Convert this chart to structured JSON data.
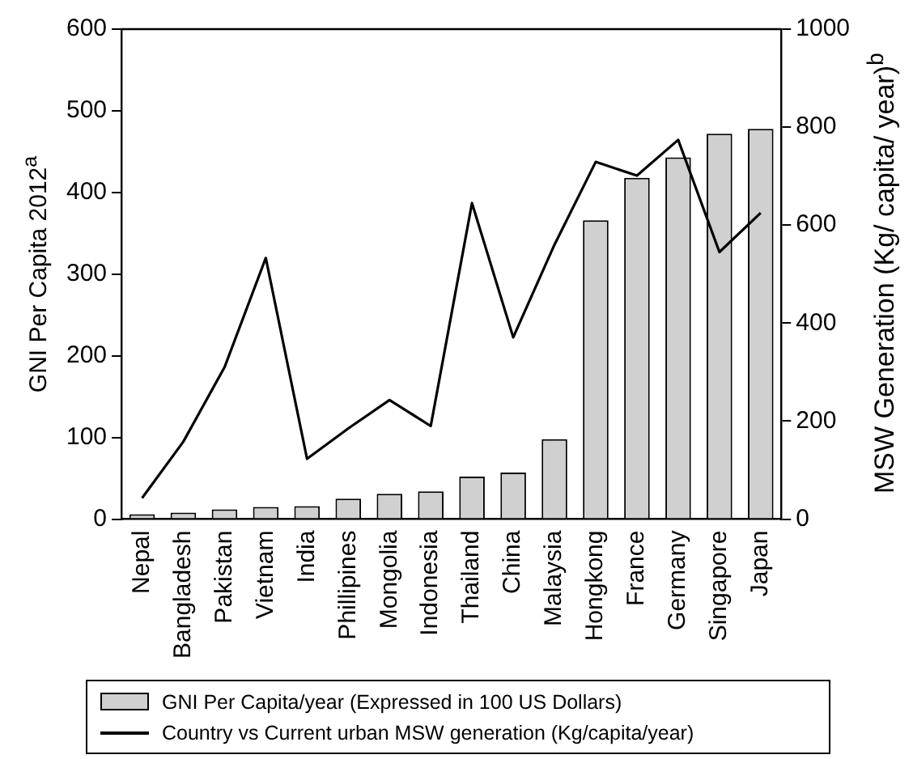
{
  "chart_data": {
    "type": "bar",
    "ylabel": "GNI Per Capita 2012$^{a}$",
    "y2label": "MSW Generation (Kg/ capita/ year)$^{b}$",
    "categories": [
      "Nepal",
      "Bangladesh",
      "Pakistan",
      "Vietnam",
      "India",
      "Phillipines",
      "Mongolia",
      "Indonesia",
      "Thailand",
      "China",
      "Malaysia",
      "Hongkong",
      "France",
      "Germany",
      "Singapore",
      "Japan"
    ],
    "series": [
      {
        "name": "GNI Per Capita/year (Expressed in 100 US Dollars)",
        "color": "#d0d0d0",
        "values": [
          6,
          8,
          12,
          15,
          16,
          25,
          31,
          34,
          52,
          57,
          98,
          366,
          418,
          443,
          472,
          478
        ]
      },
      {
        "name": "Country vs Current urban MSW generation (Kg/capita/year)",
        "type": "line",
        "axis": "y2",
        "color": "#000000",
        "values": [
          43,
          158,
          310,
          533,
          123,
          185,
          243,
          190,
          645,
          371,
          560,
          729,
          701,
          774,
          545,
          625
        ]
      }
    ],
    "ylim": [
      0,
      600
    ],
    "yticks": [
      0,
      100,
      200,
      300,
      400,
      500,
      600
    ],
    "y2lim": [
      0,
      1000
    ],
    "y2ticks": [
      0,
      200,
      400,
      600,
      800,
      1000
    ],
    "grid": false,
    "legend": "bottom",
    "marker": "none",
    "line_style": "solid"
  }
}
